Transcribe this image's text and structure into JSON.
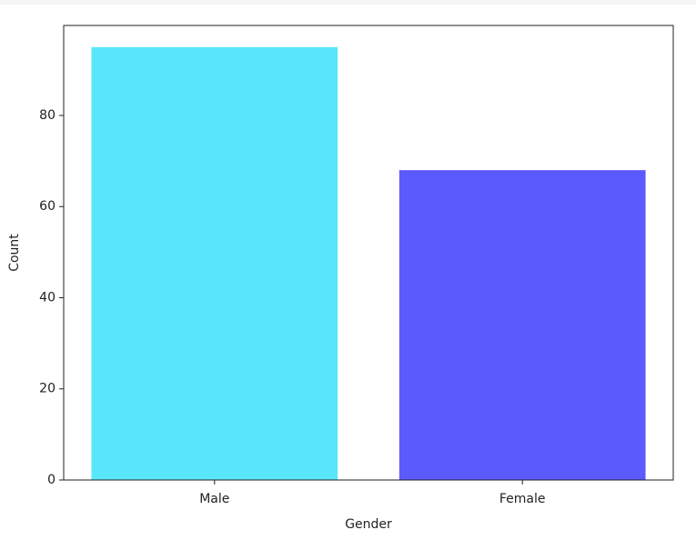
{
  "chart_data": {
    "type": "bar",
    "categories": [
      "Male",
      "Female"
    ],
    "values": [
      95,
      68
    ],
    "colors": [
      "#5ae6fa",
      "#5a5afd"
    ],
    "xlabel": "Gender",
    "ylabel": "Count",
    "ylim": [
      0,
      99.75
    ],
    "yticks": [
      0,
      20,
      40,
      60,
      80
    ],
    "grid": false
  }
}
